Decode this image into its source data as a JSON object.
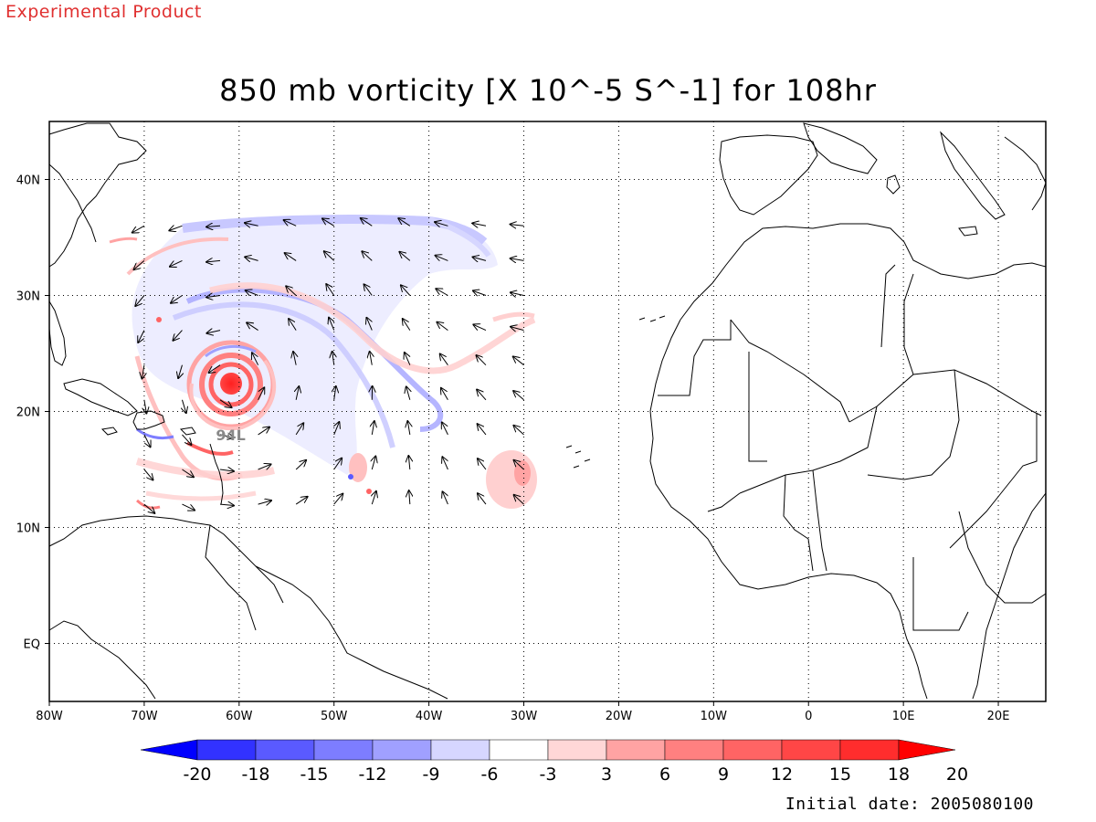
{
  "header": {
    "experimental_label": "Experimental Product",
    "title": "850 mb vorticity [X 10^-5 S^-1] for 108hr"
  },
  "map": {
    "lon_range": [
      -80,
      25
    ],
    "lat_range": [
      -5,
      45
    ],
    "lon_ticks": [
      {
        "value": -80,
        "label": "80W"
      },
      {
        "value": -70,
        "label": "70W"
      },
      {
        "value": -60,
        "label": "60W"
      },
      {
        "value": -50,
        "label": "50W"
      },
      {
        "value": -40,
        "label": "40W"
      },
      {
        "value": -30,
        "label": "30W"
      },
      {
        "value": -20,
        "label": "20W"
      },
      {
        "value": -10,
        "label": "10W"
      },
      {
        "value": 0,
        "label": "0"
      },
      {
        "value": 10,
        "label": "10E"
      },
      {
        "value": 20,
        "label": "20E"
      }
    ],
    "lat_ticks": [
      {
        "value": 40,
        "label": "40N"
      },
      {
        "value": 30,
        "label": "30N"
      },
      {
        "value": 20,
        "label": "20N"
      },
      {
        "value": 10,
        "label": "10N"
      },
      {
        "value": 0,
        "label": "EQ"
      }
    ],
    "grid": true,
    "storm_label": "94L",
    "storm_center": {
      "lon": -61,
      "lat": 22.5
    },
    "storm_label_position": {
      "lon": -61,
      "lat": 18
    }
  },
  "colorbar": {
    "tick_labels": [
      "-20",
      "-18",
      "-15",
      "-12",
      "-9",
      "-6",
      "-3",
      "3",
      "6",
      "9",
      "12",
      "15",
      "18",
      "20"
    ],
    "colors": [
      "#0000ff",
      "#3232ff",
      "#5a5aff",
      "#7d7dff",
      "#a0a0ff",
      "#d6d6ff",
      "#ffffff",
      "#ffd7d7",
      "#ffa3a3",
      "#ff8080",
      "#ff6464",
      "#ff4646",
      "#ff2d2d",
      "#ff0000"
    ]
  },
  "footer": {
    "initial_date": "Initial date: 2005080100"
  }
}
